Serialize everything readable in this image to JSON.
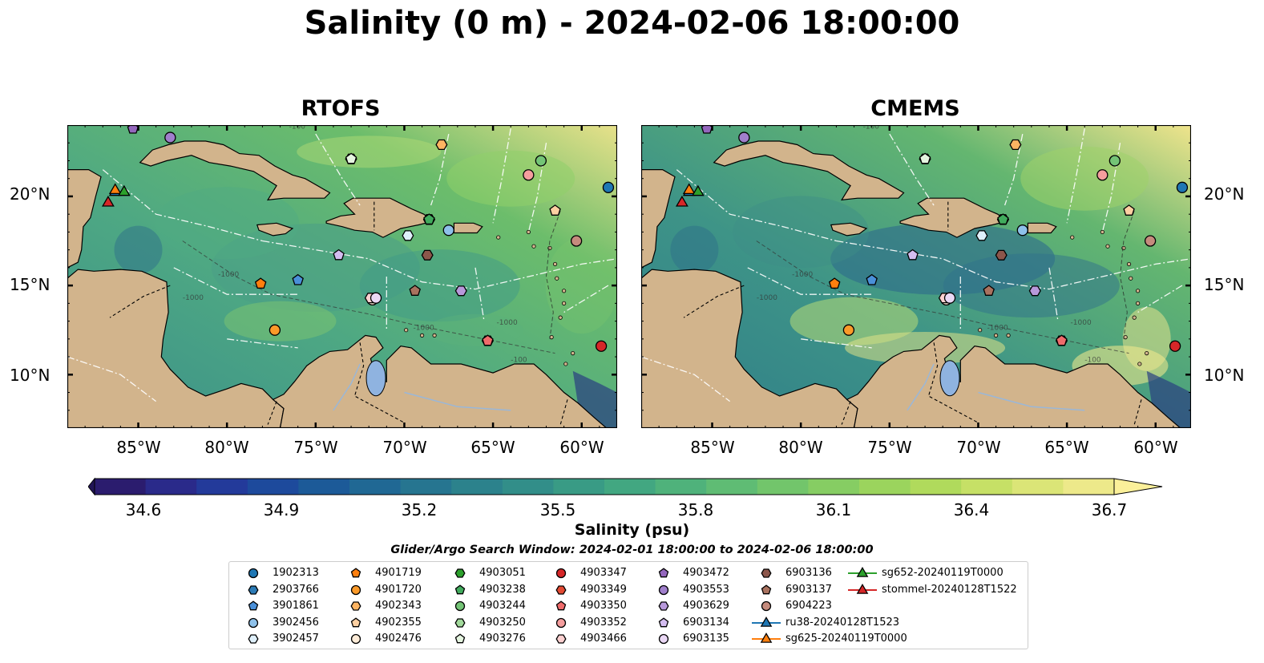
{
  "title": "Salinity (0 m) - 2024-02-06 18:00:00",
  "panels": [
    {
      "title": "RTOFS"
    },
    {
      "title": "CMEMS"
    }
  ],
  "axes": {
    "lat_labels": [
      "20°N",
      "15°N",
      "10°N"
    ],
    "lat_values": [
      20,
      15,
      10
    ],
    "lon_labels": [
      "85°W",
      "80°W",
      "75°W",
      "70°W",
      "65°W",
      "60°W"
    ],
    "lon_values": [
      -85,
      -80,
      -75,
      -70,
      -65,
      -60
    ],
    "lon_range": [
      -89,
      -58
    ],
    "lat_range": [
      7,
      24
    ]
  },
  "colorbar": {
    "label": "Salinity (psu)",
    "ticks": [
      "34.6",
      "34.9",
      "35.2",
      "35.5",
      "35.8",
      "36.1",
      "36.4",
      "36.7"
    ],
    "range": [
      34.6,
      36.7
    ],
    "extend": "both",
    "colormap": "haline"
  },
  "search_window": "Glider/Argo Search Window: 2024-02-01 18:00:00 to 2024-02-06 18:00:00",
  "colors": {
    "land": "#d2b48c",
    "deep_low_salinity": "#2a1d6a",
    "lake": "#8fb3e0"
  },
  "legend": [
    {
      "name": "1902313",
      "marker": "circle",
      "color": "#1f77b4"
    },
    {
      "name": "2903766",
      "marker": "hexagon",
      "color": "#2c7bb6"
    },
    {
      "name": "3901861",
      "marker": "pentagon",
      "color": "#4a90d9"
    },
    {
      "name": "3902456",
      "marker": "circle",
      "color": "#8ec1ea"
    },
    {
      "name": "3902457",
      "marker": "hexagon",
      "color": "#dff0fb"
    },
    {
      "name": "4901719",
      "marker": "pentagon",
      "color": "#ff7f0e"
    },
    {
      "name": "4901720",
      "marker": "circle",
      "color": "#fb9a29"
    },
    {
      "name": "4902343",
      "marker": "hexagon",
      "color": "#fdb462"
    },
    {
      "name": "4902355",
      "marker": "pentagon",
      "color": "#fdd0a2"
    },
    {
      "name": "4902476",
      "marker": "circle",
      "color": "#feecd8"
    },
    {
      "name": "4903051",
      "marker": "hexagon",
      "color": "#2ca02c"
    },
    {
      "name": "4903238",
      "marker": "pentagon",
      "color": "#41ab5d"
    },
    {
      "name": "4903244",
      "marker": "circle",
      "color": "#74c476"
    },
    {
      "name": "4903250",
      "marker": "hexagon",
      "color": "#a1d99b"
    },
    {
      "name": "4903276",
      "marker": "pentagon",
      "color": "#e5f5e0"
    },
    {
      "name": "4903347",
      "marker": "circle",
      "color": "#d62728"
    },
    {
      "name": "4903349",
      "marker": "hexagon",
      "color": "#e34a33"
    },
    {
      "name": "4903350",
      "marker": "pentagon",
      "color": "#ef6b6b"
    },
    {
      "name": "4903352",
      "marker": "circle",
      "color": "#f59e9e"
    },
    {
      "name": "4903466",
      "marker": "hexagon",
      "color": "#fbd0d0"
    },
    {
      "name": "4903472",
      "marker": "pentagon",
      "color": "#9467bd"
    },
    {
      "name": "4903553",
      "marker": "circle",
      "color": "#a07fcc"
    },
    {
      "name": "4903629",
      "marker": "hexagon",
      "color": "#b899db"
    },
    {
      "name": "6903134",
      "marker": "pentagon",
      "color": "#d4bdf0"
    },
    {
      "name": "6903135",
      "marker": "circle",
      "color": "#ead8f5"
    },
    {
      "name": "6903136",
      "marker": "hexagon",
      "color": "#8c564b"
    },
    {
      "name": "6903137",
      "marker": "pentagon",
      "color": "#a9725f"
    },
    {
      "name": "6904223",
      "marker": "circle",
      "color": "#c58b7d"
    },
    {
      "name": "ru38-20240128T1523",
      "marker": "triangle-line",
      "color": "#1f77b4"
    },
    {
      "name": "sg625-20240119T0000",
      "marker": "triangle-line",
      "color": "#ff7f0e"
    },
    {
      "name": "sg652-20240119T0000",
      "marker": "triangle-line",
      "color": "#2ca02c"
    },
    {
      "name": "stommel-20240128T1522",
      "marker": "triangle-line",
      "color": "#d62728"
    }
  ],
  "map_markers": [
    {
      "id": "1902313",
      "lon": -58.5,
      "lat": 20.5
    },
    {
      "id": "2903766",
      "lon": -68.6,
      "lat": 18.7
    },
    {
      "id": "3901861",
      "lon": -76.0,
      "lat": 15.3
    },
    {
      "id": "3902456",
      "lon": -67.5,
      "lat": 18.1
    },
    {
      "id": "3902457",
      "lon": -69.8,
      "lat": 17.8
    },
    {
      "id": "4901719",
      "lon": -78.1,
      "lat": 15.1
    },
    {
      "id": "4901720",
      "lon": -77.3,
      "lat": 12.5
    },
    {
      "id": "4902343",
      "lon": -67.9,
      "lat": 22.9
    },
    {
      "id": "4902355",
      "lon": -61.5,
      "lat": 19.2
    },
    {
      "id": "4902476",
      "lon": -71.8,
      "lat": 14.2
    },
    {
      "id": "4903051",
      "lon": -68.6,
      "lat": 18.7
    },
    {
      "id": "4903238",
      "lon": -68.6,
      "lat": 18.7
    },
    {
      "id": "4903244",
      "lon": -62.3,
      "lat": 22.0
    },
    {
      "id": "4903250",
      "lon": -73.0,
      "lat": 22.1
    },
    {
      "id": "4903276",
      "lon": -73.0,
      "lat": 22.1
    },
    {
      "id": "4903347",
      "lon": -58.9,
      "lat": 11.6
    },
    {
      "id": "4903349",
      "lon": -65.3,
      "lat": 11.9
    },
    {
      "id": "4903350",
      "lon": -65.3,
      "lat": 11.9
    },
    {
      "id": "4903352",
      "lon": -63.0,
      "lat": 21.2
    },
    {
      "id": "4903466",
      "lon": -71.9,
      "lat": 14.3
    },
    {
      "id": "4903472",
      "lon": -85.3,
      "lat": 23.8
    },
    {
      "id": "4903553",
      "lon": -83.2,
      "lat": 23.3
    },
    {
      "id": "4903629",
      "lon": -66.8,
      "lat": 14.7
    },
    {
      "id": "6903134",
      "lon": -73.7,
      "lat": 16.7
    },
    {
      "id": "6903135",
      "lon": -71.6,
      "lat": 14.3
    },
    {
      "id": "6903136",
      "lon": -68.7,
      "lat": 16.7
    },
    {
      "id": "6903137",
      "lon": -69.4,
      "lat": 14.7
    },
    {
      "id": "6904223",
      "lon": -60.3,
      "lat": 17.5
    },
    {
      "id": "ru38-20240128T1523",
      "lon": -86.3,
      "lat": 20.3
    },
    {
      "id": "sg625-20240119T0000",
      "lon": -86.3,
      "lat": 20.4
    },
    {
      "id": "sg652-20240119T0000",
      "lon": -85.8,
      "lat": 20.3
    },
    {
      "id": "stommel-20240128T1522",
      "lon": -86.7,
      "lat": 19.7
    }
  ]
}
